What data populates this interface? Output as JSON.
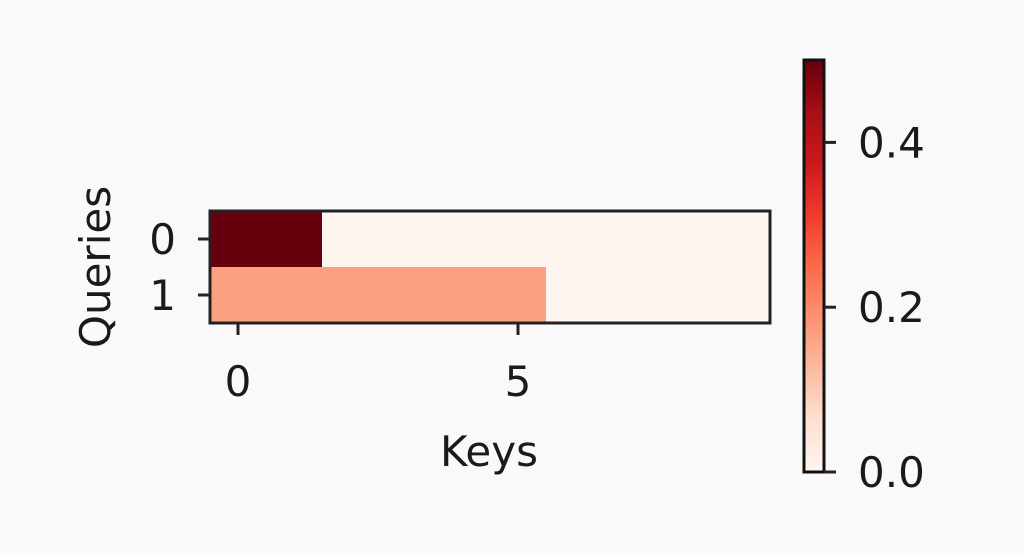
{
  "chart_data": {
    "type": "heatmap",
    "title": "",
    "xlabel": "Keys",
    "ylabel": "Queries",
    "x_ticks": [
      0,
      5
    ],
    "y_ticks": [
      0,
      1
    ],
    "x_tick_labels": [
      "0",
      "5"
    ],
    "y_tick_labels": [
      "0",
      "1"
    ],
    "rows": 2,
    "cols": 10,
    "values": [
      [
        0.5,
        0.5,
        0,
        0,
        0,
        0,
        0,
        0,
        0,
        0
      ],
      [
        0.1667,
        0.1667,
        0.1667,
        0.1667,
        0.1667,
        0.1667,
        0,
        0,
        0,
        0
      ]
    ],
    "colormap": "Reds",
    "colorbar": {
      "range": [
        0,
        0.5
      ],
      "ticks": [
        0.0,
        0.2,
        0.4
      ],
      "tick_labels": [
        "0.0",
        "0.2",
        "0.4"
      ]
    }
  }
}
